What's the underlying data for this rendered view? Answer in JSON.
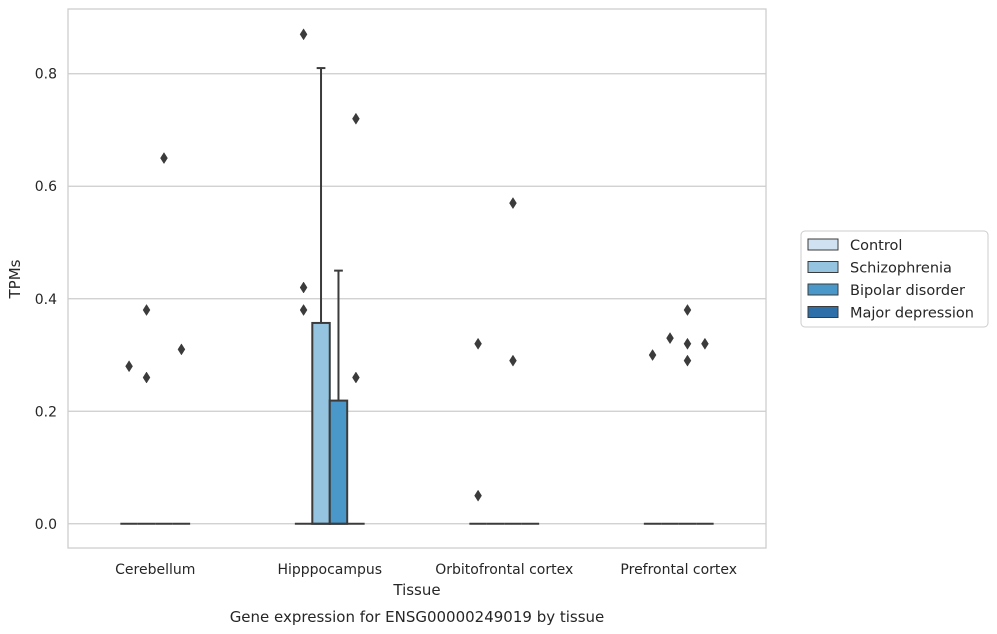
{
  "chart_data": {
    "type": "box",
    "title": "",
    "caption": "Gene expression for ENSG00000249019 by tissue",
    "xlabel": "Tissue",
    "ylabel": "TPMs",
    "ylim": [
      -0.043,
      0.915
    ],
    "yticks": [
      0.0,
      0.2,
      0.4,
      0.6,
      0.8
    ],
    "ytick_labels": [
      "0.0",
      "0.2",
      "0.4",
      "0.6",
      "0.8"
    ],
    "grid": true,
    "legend_position": "right",
    "categories": [
      "Cerebellum",
      "Hipppocampus",
      "Orbitofrontal cortex",
      "Prefrontal cortex"
    ],
    "series": [
      {
        "name": "Control",
        "color": "#d0e2f1",
        "boxes": [
          {
            "q1": 0,
            "median": 0,
            "q3": 0,
            "whisker_low": 0,
            "whisker_high": 0,
            "outliers": [
              0.28
            ]
          },
          {
            "q1": 0,
            "median": 0,
            "q3": 0,
            "whisker_low": 0,
            "whisker_high": 0,
            "outliers": [
              0.87,
              0.42,
              0.38
            ]
          },
          {
            "q1": 0,
            "median": 0,
            "q3": 0,
            "whisker_low": 0,
            "whisker_high": 0,
            "outliers": [
              0.32,
              0.05
            ]
          },
          {
            "q1": 0,
            "median": 0,
            "q3": 0,
            "whisker_low": 0,
            "whisker_high": 0,
            "outliers": [
              0.3
            ]
          }
        ]
      },
      {
        "name": "Schizophrenia",
        "color": "#94c4df",
        "boxes": [
          {
            "q1": 0,
            "median": 0,
            "q3": 0,
            "whisker_low": 0,
            "whisker_high": 0,
            "outliers": [
              0.38,
              0.26
            ]
          },
          {
            "q1": 0,
            "median": 0,
            "q3": 0.357,
            "whisker_low": 0,
            "whisker_high": 0.81,
            "outliers": []
          },
          {
            "q1": 0,
            "median": 0,
            "q3": 0,
            "whisker_low": 0,
            "whisker_high": 0,
            "outliers": []
          },
          {
            "q1": 0,
            "median": 0,
            "q3": 0,
            "whisker_low": 0,
            "whisker_high": 0,
            "outliers": [
              0.33
            ]
          }
        ]
      },
      {
        "name": "Bipolar disorder",
        "color": "#4a98c9",
        "boxes": [
          {
            "q1": 0,
            "median": 0,
            "q3": 0,
            "whisker_low": 0,
            "whisker_high": 0,
            "outliers": [
              0.65
            ]
          },
          {
            "q1": 0,
            "median": 0,
            "q3": 0.219,
            "whisker_low": 0,
            "whisker_high": 0.45,
            "outliers": []
          },
          {
            "q1": 0,
            "median": 0,
            "q3": 0,
            "whisker_low": 0,
            "whisker_high": 0,
            "outliers": [
              0.57,
              0.29
            ]
          },
          {
            "q1": 0,
            "median": 0,
            "q3": 0,
            "whisker_low": 0,
            "whisker_high": 0,
            "outliers": [
              0.38,
              0.32,
              0.29
            ]
          }
        ]
      },
      {
        "name": "Major depression",
        "color": "#2d6fa8",
        "boxes": [
          {
            "q1": 0,
            "median": 0,
            "q3": 0,
            "whisker_low": 0,
            "whisker_high": 0,
            "outliers": [
              0.31
            ]
          },
          {
            "q1": 0,
            "median": 0,
            "q3": 0,
            "whisker_low": 0,
            "whisker_high": 0,
            "outliers": [
              0.72,
              0.26
            ]
          },
          {
            "q1": 0,
            "median": 0,
            "q3": 0,
            "whisker_low": 0,
            "whisker_high": 0,
            "outliers": []
          },
          {
            "q1": 0,
            "median": 0,
            "q3": 0,
            "whisker_low": 0,
            "whisker_high": 0,
            "outliers": [
              0.32
            ]
          }
        ]
      }
    ]
  }
}
